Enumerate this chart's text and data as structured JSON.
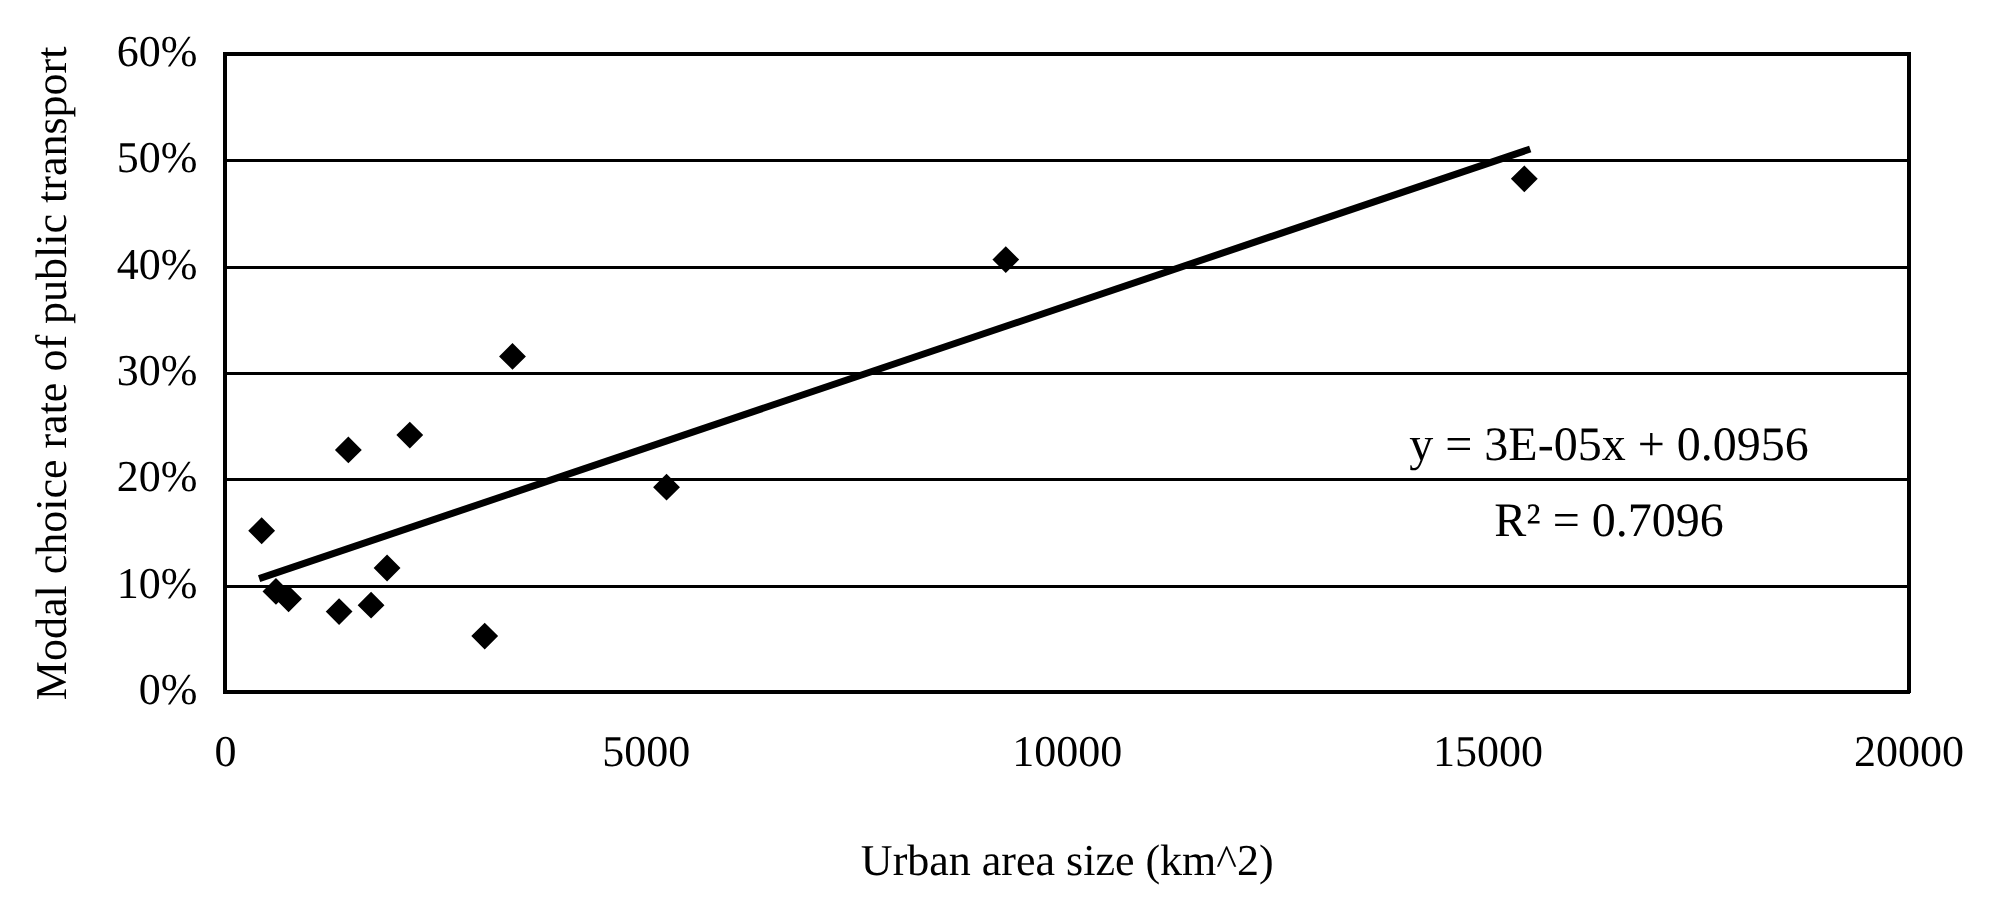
{
  "chart_data": {
    "type": "scatter",
    "xlabel": "Urban area size (km^2)",
    "ylabel": "Modal choice rate of public transport",
    "xlim": [
      0,
      20000
    ],
    "xticks": [
      0,
      5000,
      10000,
      15000,
      20000
    ],
    "ylim": [
      0,
      60
    ],
    "yticks": [
      {
        "value": 0,
        "label": "0%"
      },
      {
        "value": 10,
        "label": "10%"
      },
      {
        "value": 20,
        "label": "20%"
      },
      {
        "value": 30,
        "label": "30%"
      },
      {
        "value": 40,
        "label": "40%"
      },
      {
        "value": 50,
        "label": "50%"
      },
      {
        "value": 60,
        "label": "60%"
      }
    ],
    "grid": "y",
    "legend": false,
    "series": [
      {
        "type": "scatter",
        "marker": "diamond",
        "color": "#000000",
        "x": [
          430,
          600,
          750,
          1350,
          1460,
          1730,
          1920,
          2190,
          3080,
          3410,
          5240,
          9270,
          15430
        ],
        "values": [
          15.2,
          9.5,
          8.8,
          7.6,
          22.8,
          8.2,
          11.7,
          24.2,
          5.3,
          31.6,
          19.3,
          40.7,
          48.3
        ]
      },
      {
        "type": "line",
        "color": "#000000",
        "x": [
          400,
          15500
        ],
        "values": [
          10.7,
          51.1
        ]
      }
    ],
    "annotations": [
      "y = 3E-05x + 0.0956",
      "R² = 0.7096"
    ]
  }
}
